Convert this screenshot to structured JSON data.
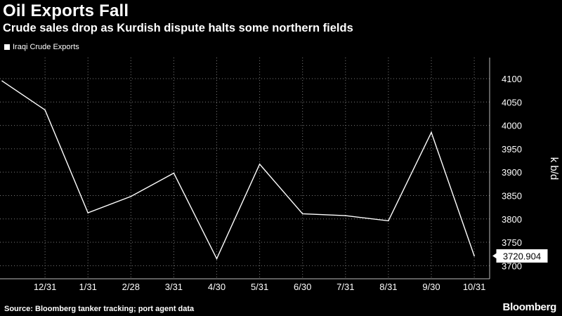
{
  "header": {
    "title": "Oil Exports Fall",
    "subtitle": "Crude sales drop as Kurdish dispute halts some northern fields"
  },
  "footer": {
    "source": "Source: Bloomberg tanker tracking; port agent data",
    "brand": "Bloomberg"
  },
  "colors": {
    "background": "#000000",
    "line": "#ffffff",
    "grid": "#7a7a7a"
  },
  "chart_data": {
    "type": "line",
    "title": "Oil Exports Fall",
    "subtitle": "Crude sales drop as Kurdish dispute halts some northern fields",
    "xlabel": "",
    "ylabel": "k b/d",
    "grid": true,
    "legend_position": "top-left",
    "x_tick_labels": [
      "12/31",
      "1/31",
      "2/28",
      "3/31",
      "4/30",
      "5/31",
      "6/30",
      "7/31",
      "8/31",
      "9/30",
      "10/31"
    ],
    "y_ticks": [
      3700,
      3750,
      3800,
      3850,
      3900,
      3950,
      4000,
      4050,
      4100
    ],
    "ylim": [
      3675,
      4130
    ],
    "series": [
      {
        "name": "Iraqi Crude Exports",
        "x": [
          "11/30",
          "12/31",
          "1/31",
          "2/28",
          "3/31",
          "4/30",
          "5/31",
          "6/30",
          "7/31",
          "8/31",
          "9/30",
          "10/31"
        ],
        "values": [
          4095,
          4033,
          3813,
          3848,
          3898,
          3715,
          3917,
          3811,
          3807,
          3796,
          3985,
          3720.904
        ]
      }
    ],
    "last_value_label": "3720.904"
  }
}
